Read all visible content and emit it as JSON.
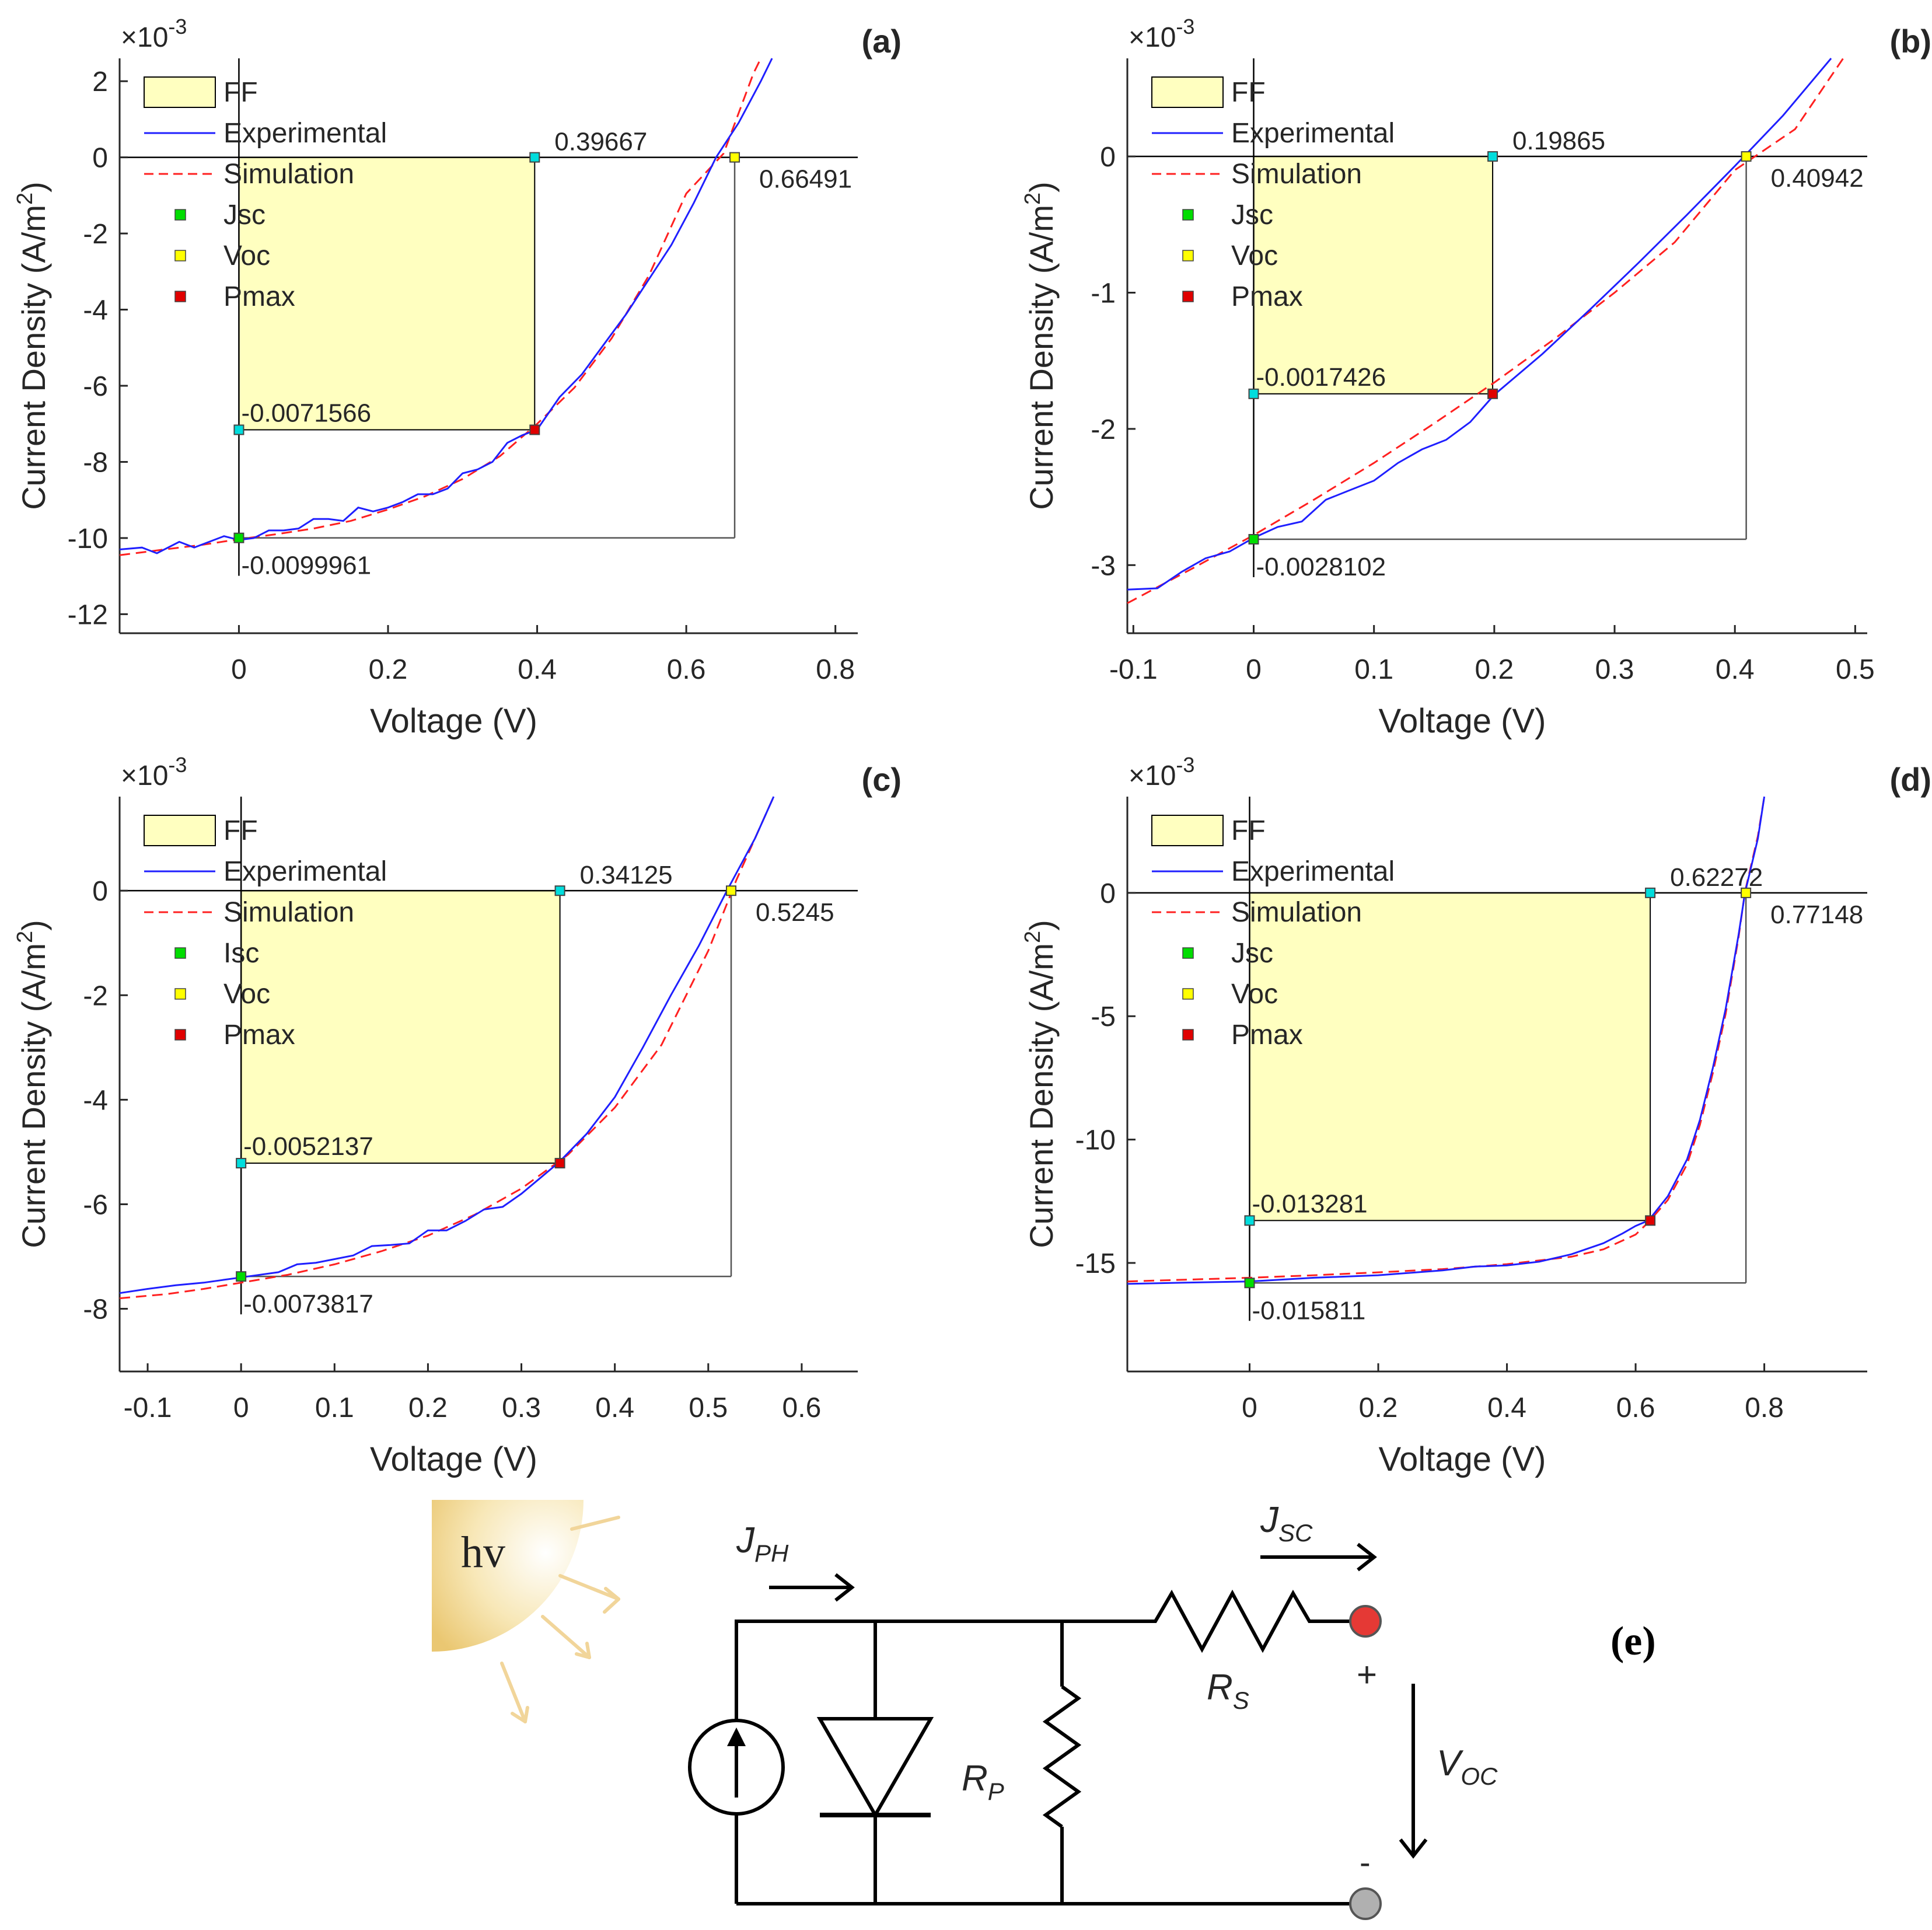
{
  "chart_data": [
    {
      "type": "line",
      "panel_label": "(a)",
      "exponent": "-3",
      "xlabel": "Voltage (V)",
      "ylabel": "Current Density (A/m",
      "ylabel_sup": "2",
      "ylabel_end": ")",
      "xlim": [
        -0.16,
        0.83
      ],
      "ylim": [
        -12.5,
        2.6
      ],
      "xticks": [
        0,
        0.2,
        0.4,
        0.6,
        0.8
      ],
      "xtick_labels": [
        "0",
        "0.2",
        "0.4",
        "0.6",
        "0.8"
      ],
      "yticks": [
        -12,
        -10,
        -8,
        -6,
        -4,
        -2,
        0,
        2
      ],
      "ytick_labels": [
        "-12",
        "-10",
        "-8",
        "-6",
        "-4",
        "-2",
        "0",
        "2"
      ],
      "legend": [
        "FF",
        "Experimental",
        "Simulation",
        "Jsc",
        "Voc",
        "Pmax"
      ],
      "voc": 0.66491,
      "jsc": -9.9961,
      "vmp": 0.39667,
      "jmp": -7.1566,
      "annotations": {
        "vmp": "0.39667",
        "voc": "0.66491",
        "jmp": "-0.0071566",
        "jsc": "-0.0099961"
      },
      "series": [
        {
          "name": "Experimental",
          "x": [
            -0.16,
            -0.13,
            -0.11,
            -0.08,
            -0.06,
            -0.02,
            0,
            0.02,
            0.04,
            0.06,
            0.08,
            0.1,
            0.12,
            0.14,
            0.16,
            0.18,
            0.2,
            0.22,
            0.24,
            0.26,
            0.28,
            0.3,
            0.32,
            0.34,
            0.36,
            0.38,
            0.4,
            0.43,
            0.46,
            0.49,
            0.52,
            0.55,
            0.58,
            0.61,
            0.64,
            0.67,
            0.7,
            0.715
          ],
          "y": [
            -10.3,
            -10.25,
            -10.4,
            -10.1,
            -10.25,
            -9.95,
            -10.05,
            -10.0,
            -9.8,
            -9.8,
            -9.75,
            -9.5,
            -9.5,
            -9.55,
            -9.2,
            -9.3,
            -9.2,
            -9.05,
            -8.85,
            -8.85,
            -8.7,
            -8.3,
            -8.2,
            -8.0,
            -7.5,
            -7.3,
            -7.15,
            -6.3,
            -5.7,
            -4.9,
            -4.1,
            -3.2,
            -2.3,
            -1.2,
            0.0,
            0.9,
            2.0,
            2.6
          ]
        },
        {
          "name": "Simulation",
          "x": [
            -0.16,
            -0.1,
            -0.05,
            0,
            0.05,
            0.1,
            0.15,
            0.2,
            0.25,
            0.3,
            0.35,
            0.4,
            0.45,
            0.5,
            0.55,
            0.6,
            0.65,
            0.69,
            0.7
          ],
          "y": [
            -10.45,
            -10.3,
            -10.18,
            -10.03,
            -9.9,
            -9.75,
            -9.55,
            -9.25,
            -8.9,
            -8.45,
            -7.85,
            -7.0,
            -6.05,
            -4.75,
            -3.1,
            -0.95,
            0.1,
            2.2,
            2.6
          ]
        }
      ]
    },
    {
      "type": "line",
      "panel_label": "(b)",
      "exponent": "-3",
      "xlabel": "Voltage (V)",
      "ylabel": "Current Density (A/m",
      "ylabel_sup": "2",
      "ylabel_end": ")",
      "xlim": [
        -0.105,
        0.51
      ],
      "ylim": [
        -3.5,
        0.72
      ],
      "xticks": [
        -0.1,
        0,
        0.1,
        0.2,
        0.3,
        0.4,
        0.5
      ],
      "xtick_labels": [
        "-0.1",
        "0",
        "0.1",
        "0.2",
        "0.3",
        "0.4",
        "0.5"
      ],
      "yticks": [
        -3,
        -2,
        -1,
        0
      ],
      "ytick_labels": [
        "-3",
        "-2",
        "-1",
        "0"
      ],
      "legend": [
        "FF",
        "Experimental",
        "Simulation",
        "Jsc",
        "Voc",
        "Pmax"
      ],
      "voc": 0.40942,
      "jsc": -2.8102,
      "vmp": 0.19865,
      "jmp": -1.7426,
      "annotations": {
        "vmp": "0.19865",
        "voc": "0.40942",
        "jmp": "-0.0017426",
        "jsc": "-0.0028102"
      },
      "series": [
        {
          "name": "Experimental",
          "x": [
            -0.105,
            -0.08,
            -0.06,
            -0.04,
            -0.02,
            0,
            0.02,
            0.04,
            0.06,
            0.08,
            0.1,
            0.12,
            0.14,
            0.16,
            0.18,
            0.2,
            0.24,
            0.28,
            0.32,
            0.36,
            0.4,
            0.44,
            0.48
          ],
          "y": [
            -3.18,
            -3.17,
            -3.05,
            -2.95,
            -2.9,
            -2.8,
            -2.72,
            -2.68,
            -2.52,
            -2.45,
            -2.38,
            -2.25,
            -2.15,
            -2.08,
            -1.95,
            -1.75,
            -1.45,
            -1.12,
            -0.78,
            -0.43,
            -0.07,
            0.3,
            0.72
          ]
        },
        {
          "name": "Simulation",
          "x": [
            -0.105,
            -0.05,
            0,
            0.05,
            0.1,
            0.15,
            0.2,
            0.25,
            0.3,
            0.35,
            0.4,
            0.45,
            0.49
          ],
          "y": [
            -3.28,
            -3.02,
            -2.78,
            -2.52,
            -2.25,
            -1.96,
            -1.66,
            -1.34,
            -1.0,
            -0.63,
            -0.1,
            0.2,
            0.72
          ]
        }
      ]
    },
    {
      "type": "line",
      "panel_label": "(c)",
      "exponent": "-3",
      "xlabel": "Voltage (V)",
      "ylabel": "Current Density (A/m",
      "ylabel_sup": "2",
      "ylabel_end": ")",
      "xlim": [
        -0.13,
        0.66
      ],
      "ylim": [
        -9.2,
        1.8
      ],
      "xticks": [
        -0.1,
        0,
        0.1,
        0.2,
        0.3,
        0.4,
        0.5,
        0.6
      ],
      "xtick_labels": [
        "-0.1",
        "0",
        "0.1",
        "0.2",
        "0.3",
        "0.4",
        "0.5",
        "0.6"
      ],
      "yticks": [
        -8,
        -6,
        -4,
        -2,
        0
      ],
      "ytick_labels": [
        "-8",
        "-6",
        "-4",
        "-2",
        "0"
      ],
      "legend": [
        "FF",
        "Experimental",
        "Simulation",
        "Isc",
        "Voc",
        "Pmax"
      ],
      "voc": 0.5245,
      "jsc": -7.3817,
      "vmp": 0.34125,
      "jmp": -5.2137,
      "annotations": {
        "vmp": "0.34125",
        "voc": "0.5245",
        "jmp": "-0.0052137",
        "jsc": "-0.0073817"
      },
      "series": [
        {
          "name": "Experimental",
          "x": [
            -0.13,
            -0.1,
            -0.07,
            -0.04,
            -0.02,
            0,
            0.02,
            0.04,
            0.06,
            0.08,
            0.1,
            0.12,
            0.14,
            0.16,
            0.18,
            0.2,
            0.22,
            0.24,
            0.26,
            0.28,
            0.3,
            0.32,
            0.34,
            0.37,
            0.4,
            0.43,
            0.46,
            0.49,
            0.52,
            0.55,
            0.57
          ],
          "y": [
            -7.7,
            -7.62,
            -7.55,
            -7.5,
            -7.45,
            -7.4,
            -7.35,
            -7.3,
            -7.15,
            -7.12,
            -7.05,
            -6.98,
            -6.8,
            -6.78,
            -6.75,
            -6.5,
            -6.5,
            -6.32,
            -6.1,
            -6.05,
            -5.8,
            -5.5,
            -5.2,
            -4.65,
            -3.95,
            -3.0,
            -2.0,
            -1.05,
            0.0,
            1.0,
            1.8
          ]
        },
        {
          "name": "Simulation",
          "x": [
            -0.13,
            -0.08,
            -0.04,
            0,
            0.05,
            0.1,
            0.15,
            0.2,
            0.25,
            0.3,
            0.35,
            0.4,
            0.45,
            0.5,
            0.53,
            0.57
          ],
          "y": [
            -7.8,
            -7.72,
            -7.62,
            -7.5,
            -7.35,
            -7.15,
            -6.9,
            -6.6,
            -6.2,
            -5.7,
            -5.05,
            -4.15,
            -2.95,
            -1.15,
            0.2,
            1.8
          ]
        }
      ]
    },
    {
      "type": "line",
      "panel_label": "(d)",
      "exponent": "-3",
      "xlabel": "Voltage (V)",
      "ylabel": "Current Density (A/m",
      "ylabel_sup": "2",
      "ylabel_end": ")",
      "xlim": [
        -0.19,
        0.96
      ],
      "ylim": [
        -19.4,
        3.9
      ],
      "xticks": [
        0,
        0.2,
        0.4,
        0.6,
        0.8
      ],
      "xtick_labels": [
        "0",
        "0.2",
        "0.4",
        "0.6",
        "0.8"
      ],
      "yticks": [
        -15,
        -10,
        -5,
        0
      ],
      "ytick_labels": [
        "-15",
        "-10",
        "-5",
        "0"
      ],
      "legend": [
        "FF",
        "Experimental",
        "Simulation",
        "Jsc",
        "Voc",
        "Pmax"
      ],
      "voc": 0.77148,
      "jsc": -15.811,
      "vmp": 0.62272,
      "jmp": -13.281,
      "annotations": {
        "vmp": "0.62272",
        "voc": "0.77148",
        "jmp": "-0.013281",
        "jsc": "-0.015811"
      },
      "series": [
        {
          "name": "Experimental",
          "x": [
            -0.19,
            -0.1,
            0,
            0.1,
            0.2,
            0.3,
            0.35,
            0.4,
            0.45,
            0.5,
            0.55,
            0.58,
            0.6,
            0.62,
            0.65,
            0.68,
            0.7,
            0.72,
            0.74,
            0.76,
            0.77,
            0.79,
            0.8
          ],
          "y": [
            -15.85,
            -15.8,
            -15.75,
            -15.6,
            -15.5,
            -15.3,
            -15.15,
            -15.1,
            -14.95,
            -14.65,
            -14.2,
            -13.8,
            -13.5,
            -13.28,
            -12.3,
            -10.8,
            -9.2,
            -7.1,
            -4.7,
            -1.7,
            0.0,
            2.2,
            3.9
          ]
        },
        {
          "name": "Simulation",
          "x": [
            -0.19,
            -0.1,
            0,
            0.1,
            0.2,
            0.3,
            0.4,
            0.5,
            0.55,
            0.6,
            0.62,
            0.65,
            0.68,
            0.7,
            0.72,
            0.74,
            0.76,
            0.77,
            0.79,
            0.8
          ],
          "y": [
            -15.75,
            -15.68,
            -15.6,
            -15.5,
            -15.38,
            -15.25,
            -15.05,
            -14.75,
            -14.45,
            -13.85,
            -13.35,
            -12.45,
            -11.0,
            -9.4,
            -7.3,
            -4.9,
            -1.8,
            0.05,
            2.3,
            3.9
          ]
        }
      ]
    }
  ],
  "circuit": {
    "panel_label": "(e)",
    "light_label": "hv",
    "jph": {
      "main": "J",
      "sub": "PH"
    },
    "jsc": {
      "main": "J",
      "sub": "SC"
    },
    "rs": {
      "main": "R",
      "sub": "S"
    },
    "rp": {
      "main": "R",
      "sub": "P"
    },
    "voc": {
      "main": "V",
      "sub": "OC"
    },
    "plus": "+",
    "minus": "-"
  },
  "colors": {
    "experimental": "#1f1fff",
    "simulation": "#ff2020",
    "ff_fill": "#ffffc0",
    "ff_edge": "#000000",
    "jsc_marker": "#00dd00",
    "voc_marker": "#ffff00",
    "pmax_marker": "#e00000",
    "cyan_marker": "#00dddd",
    "terminal_plus": "#e53935",
    "terminal_minus": "#b0b0b0",
    "sun": "#f3d48a"
  }
}
